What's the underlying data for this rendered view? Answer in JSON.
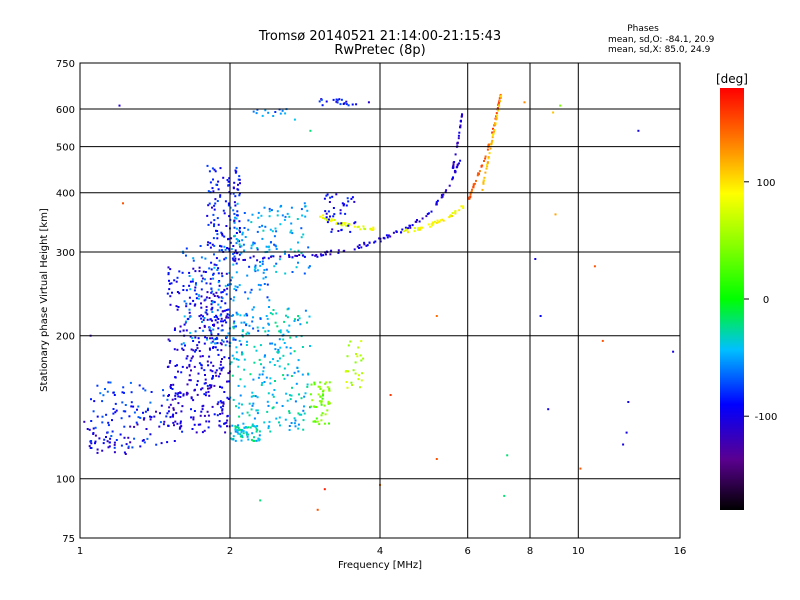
{
  "chart_data": {
    "type": "scatter",
    "title": "Tromsø 20140521 21:14:00-21:15:43",
    "subtitle": "RwPretec (8p)",
    "xlabel": "Frequency [MHz]",
    "ylabel": "Stationary phase Virtual Height [km]",
    "x_scale": "log",
    "y_scale": "log",
    "xlim": [
      1,
      16
    ],
    "ylim": [
      75,
      750
    ],
    "x_ticks": [
      1,
      2,
      4,
      6,
      8,
      10,
      16
    ],
    "x_tick_labels": [
      "1",
      "2",
      "4",
      "6",
      "8",
      "10",
      "16"
    ],
    "y_ticks": [
      75,
      100,
      200,
      300,
      400,
      500,
      600,
      750
    ],
    "y_tick_labels": [
      "75",
      "100",
      "200",
      "300",
      "400",
      "500",
      "600",
      "750"
    ],
    "grid": true,
    "phase_stats": {
      "heading": "Phases",
      "o_line": "mean, sd,O: -84.1, 20.9",
      "x_line": "mean, sd,X: 85.0, 24.9"
    },
    "colorbar": {
      "label": "[deg]",
      "range": [
        -180,
        180
      ],
      "ticks": [
        100,
        0,
        -100
      ],
      "tick_labels": [
        "100",
        "0",
        "-100"
      ]
    },
    "traces": [
      {
        "kind": "line",
        "phase": -110,
        "x": [
          1.02,
          1.1,
          1.25,
          1.4,
          1.6,
          1.8,
          2.0
        ],
        "y": [
          125,
          118,
          120,
          130,
          145,
          160,
          175
        ],
        "noise": 8
      },
      {
        "kind": "cloud",
        "phase": -100,
        "x": [
          1.5,
          2.0
        ],
        "y": [
          125,
          280
        ],
        "count": 350
      },
      {
        "kind": "cloud",
        "phase": -90,
        "x": [
          1.8,
          2.1
        ],
        "y": [
          280,
          460
        ],
        "count": 130
      },
      {
        "kind": "cloud",
        "phase": -40,
        "x": [
          2.0,
          2.9
        ],
        "y": [
          125,
          230
        ],
        "count": 220
      },
      {
        "kind": "cloud",
        "phase": -50,
        "x": [
          2.0,
          2.9
        ],
        "y": [
          270,
          380
        ],
        "count": 120
      },
      {
        "kind": "line",
        "phase": -105,
        "x": [
          2.0,
          2.5,
          3.0,
          3.5,
          4.0,
          4.5,
          5.0,
          5.5,
          5.8
        ],
        "y": [
          290,
          292,
          296,
          305,
          318,
          335,
          360,
          410,
          470
        ],
        "noise": 3
      },
      {
        "kind": "line",
        "phase": -110,
        "x": [
          5.6,
          5.75,
          5.85
        ],
        "y": [
          450,
          520,
          590
        ],
        "noise": 4
      },
      {
        "kind": "cloud",
        "phase": -35,
        "x": [
          2.0,
          2.3
        ],
        "y": [
          120,
          130
        ],
        "count": 60
      },
      {
        "kind": "cloud",
        "phase": 40,
        "x": [
          2.9,
          3.2
        ],
        "y": [
          130,
          160
        ],
        "count": 50
      },
      {
        "kind": "cloud",
        "phase": 60,
        "x": [
          3.4,
          3.7
        ],
        "y": [
          155,
          195
        ],
        "count": 25
      },
      {
        "kind": "line",
        "phase": 80,
        "x": [
          3.0,
          3.3,
          3.6,
          3.9
        ],
        "y": [
          360,
          345,
          338,
          335
        ],
        "noise": 3
      },
      {
        "kind": "line",
        "phase": 90,
        "x": [
          4.4,
          5.0,
          5.5,
          5.9
        ],
        "y": [
          330,
          340,
          355,
          375
        ],
        "noise": 3
      },
      {
        "kind": "line",
        "phase": 150,
        "x": [
          6.0,
          6.2,
          6.5,
          6.8,
          7.0
        ],
        "y": [
          380,
          420,
          470,
          560,
          650
        ],
        "noise": 3
      },
      {
        "kind": "line",
        "phase": 110,
        "x": [
          6.4,
          6.6,
          6.8,
          7.0
        ],
        "y": [
          400,
          470,
          550,
          640
        ],
        "noise": 3
      },
      {
        "kind": "cloud",
        "phase": -95,
        "x": [
          3.1,
          3.6
        ],
        "y": [
          330,
          400
        ],
        "count": 40
      },
      {
        "kind": "cloud",
        "phase": -90,
        "x": [
          3.0,
          3.6
        ],
        "y": [
          610,
          630
        ],
        "count": 20
      },
      {
        "kind": "cloud",
        "phase": -60,
        "x": [
          2.2,
          2.6
        ],
        "y": [
          580,
          600
        ],
        "count": 12
      },
      {
        "kind": "cloud",
        "phase": -60,
        "x": [
          1.6,
          2.4
        ],
        "y": [
          190,
          310
        ],
        "count": 150
      },
      {
        "kind": "cloud",
        "phase": -80,
        "x": [
          1.05,
          1.5
        ],
        "y": [
          115,
          160
        ],
        "count": 90
      }
    ],
    "outliers": [
      [
        1.2,
        610,
        -110
      ],
      [
        1.22,
        380,
        150
      ],
      [
        1.05,
        200,
        -120
      ],
      [
        2.3,
        90,
        -20
      ],
      [
        3.0,
        86,
        150
      ],
      [
        3.1,
        95,
        170
      ],
      [
        4.0,
        97,
        140
      ],
      [
        4.2,
        150,
        160
      ],
      [
        5.2,
        110,
        150
      ],
      [
        5.2,
        220,
        140
      ],
      [
        7.1,
        92,
        -20
      ],
      [
        7.2,
        112,
        -20
      ],
      [
        8.2,
        290,
        -100
      ],
      [
        8.4,
        220,
        -90
      ],
      [
        8.7,
        140,
        -100
      ],
      [
        9.0,
        360,
        120
      ],
      [
        10.1,
        105,
        150
      ],
      [
        10.8,
        280,
        150
      ],
      [
        11.2,
        195,
        150
      ],
      [
        12.3,
        118,
        -100
      ],
      [
        12.6,
        145,
        -100
      ],
      [
        13.2,
        540,
        -100
      ],
      [
        15.5,
        185,
        -100
      ],
      [
        12.5,
        125,
        -100
      ],
      [
        1.55,
        120,
        -100
      ],
      [
        9.2,
        610,
        40
      ],
      [
        8.9,
        590,
        110
      ],
      [
        7.8,
        620,
        130
      ],
      [
        2.55,
        595,
        -60
      ],
      [
        2.7,
        570,
        -40
      ],
      [
        3.8,
        620,
        -110
      ],
      [
        2.9,
        540,
        -20
      ]
    ]
  }
}
